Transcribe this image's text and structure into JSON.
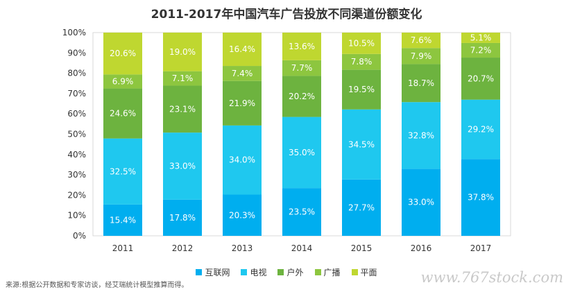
{
  "chart_data": {
    "type": "bar",
    "stacked": true,
    "title": "2011-2017年中国汽车广告投放不同渠道份额变化",
    "categories": [
      "2011",
      "2012",
      "2013",
      "2014",
      "2015",
      "2016",
      "2017"
    ],
    "ylim": [
      0,
      100
    ],
    "yticks": [
      "0%",
      "10%",
      "20%",
      "30%",
      "40%",
      "50%",
      "60%",
      "70%",
      "80%",
      "90%",
      "100%"
    ],
    "series": [
      {
        "name": "互联网",
        "color": "#00aeef",
        "values": [
          15.4,
          17.8,
          20.3,
          23.5,
          27.7,
          33.0,
          37.8
        ]
      },
      {
        "name": "电视",
        "color": "#1fc8ef",
        "values": [
          32.5,
          33.0,
          34.0,
          35.0,
          34.5,
          32.8,
          29.2
        ]
      },
      {
        "name": "户外",
        "color": "#6db33f",
        "values": [
          24.6,
          23.1,
          21.9,
          20.2,
          19.5,
          18.7,
          20.7
        ]
      },
      {
        "name": "广播",
        "color": "#8dc63f",
        "values": [
          6.9,
          7.1,
          7.4,
          7.7,
          7.8,
          7.9,
          7.2
        ]
      },
      {
        "name": "平面",
        "color": "#bfd730",
        "values": [
          20.6,
          19.0,
          16.4,
          13.6,
          10.5,
          7.6,
          5.1
        ]
      }
    ],
    "data_labels": true,
    "label_format": "percent_1dp",
    "legend_position": "bottom",
    "grid": false
  },
  "source_note": "来源:根据公开数据和专家访谈，经艾瑞统计模型推算而得。",
  "watermark": "www.767stock.com"
}
